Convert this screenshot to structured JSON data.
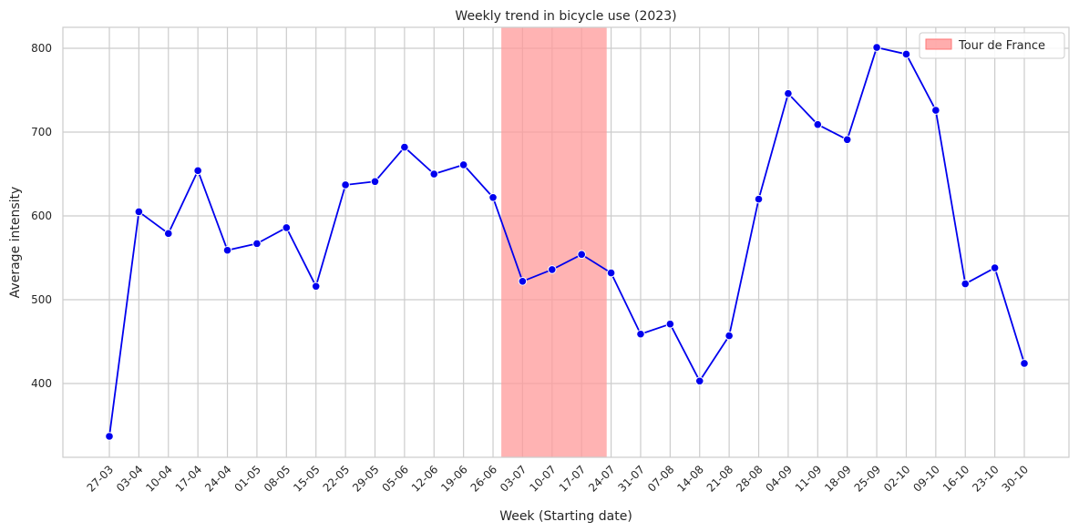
{
  "chart_data": {
    "type": "line",
    "title": "Weekly trend in bicycle use (2023)",
    "xlabel": "Week (Starting date)",
    "ylabel": "Average intensity",
    "categories": [
      "27-03",
      "03-04",
      "10-04",
      "17-04",
      "24-04",
      "01-05",
      "08-05",
      "15-05",
      "22-05",
      "29-05",
      "05-06",
      "12-06",
      "19-06",
      "26-06",
      "03-07",
      "10-07",
      "17-07",
      "24-07",
      "31-07",
      "07-08",
      "14-08",
      "21-08",
      "28-08",
      "04-09",
      "11-09",
      "18-09",
      "25-09",
      "02-10",
      "09-10",
      "16-10",
      "23-10",
      "30-10"
    ],
    "series": [
      {
        "values": [
          337,
          605,
          579,
          654,
          559,
          567,
          586,
          516,
          637,
          641,
          682,
          650,
          661,
          622,
          522,
          536,
          554,
          532,
          459,
          471,
          403,
          457,
          620,
          746,
          709,
          691,
          801,
          793,
          726,
          519,
          538,
          424
        ]
      }
    ],
    "yticks": [
      400,
      500,
      600,
      700,
      800
    ],
    "ylim": [
      312,
      825
    ],
    "grid": true,
    "line_color": "#0000ee",
    "legend": {
      "placement": "top-right",
      "entries": [
        {
          "label": "Tour de France",
          "color": "#ff9999"
        }
      ]
    },
    "shaded_region": {
      "label": "Tour de France",
      "color": "#ff9999",
      "x_start": "03-07",
      "x_end": "24-07"
    }
  }
}
